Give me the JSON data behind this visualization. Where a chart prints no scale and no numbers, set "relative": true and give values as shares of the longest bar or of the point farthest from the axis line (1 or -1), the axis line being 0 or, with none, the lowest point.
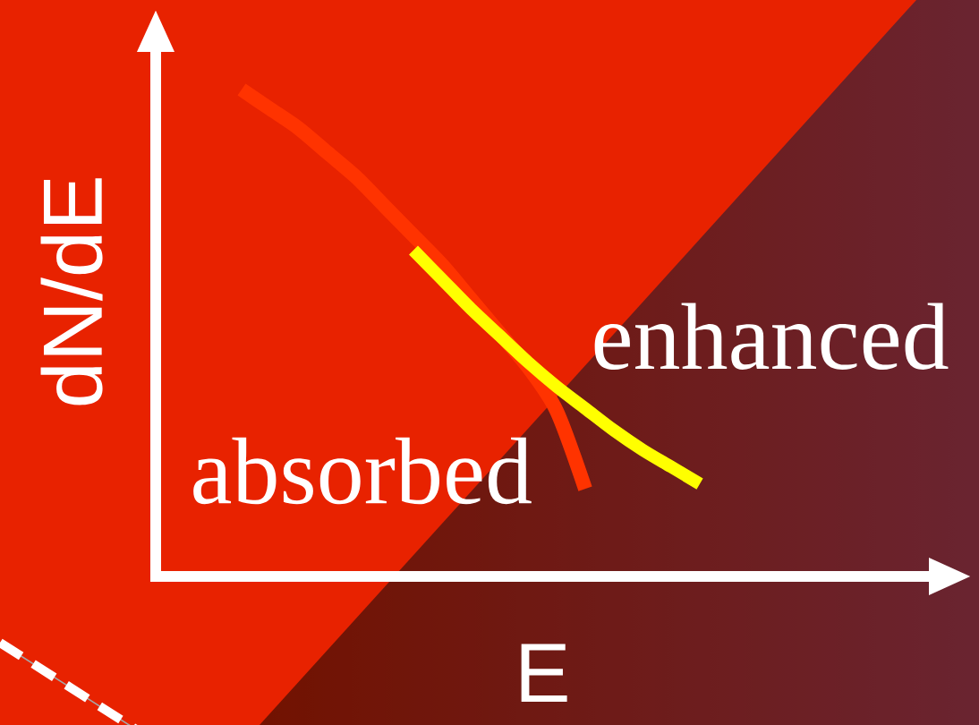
{
  "chart_data": {
    "type": "line",
    "xlabel": "E",
    "ylabel": "dN/dE",
    "relative": true,
    "line_style": "solid",
    "categories": [
      null,
      null,
      null,
      null,
      null,
      null,
      null,
      null,
      null,
      null,
      null,
      null,
      null,
      null,
      null,
      null,
      null,
      null,
      null,
      null,
      null,
      null,
      null,
      null,
      null,
      null,
      null,
      null,
      null
    ],
    "series": [
      {
        "name": "absorbed",
        "color": "#ff3300",
        "values": [
          null,
          null,
          null,
          1.0,
          0.96,
          0.92,
          0.87,
          0.82,
          0.76,
          0.7,
          0.64,
          0.57,
          0.5,
          0.43,
          0.34,
          0.18,
          null,
          null,
          null,
          null,
          null,
          null,
          null,
          null,
          null,
          null,
          null,
          null,
          null
        ]
      },
      {
        "name": "enhanced",
        "color": "#ffff00",
        "values": [
          null,
          null,
          null,
          null,
          null,
          null,
          null,
          null,
          null,
          0.67,
          0.61,
          0.55,
          0.495,
          0.44,
          0.39,
          0.345,
          0.3,
          0.26,
          0.225,
          0.19,
          null,
          null,
          null,
          null,
          null,
          null,
          null,
          null,
          null
        ]
      }
    ]
  }
}
